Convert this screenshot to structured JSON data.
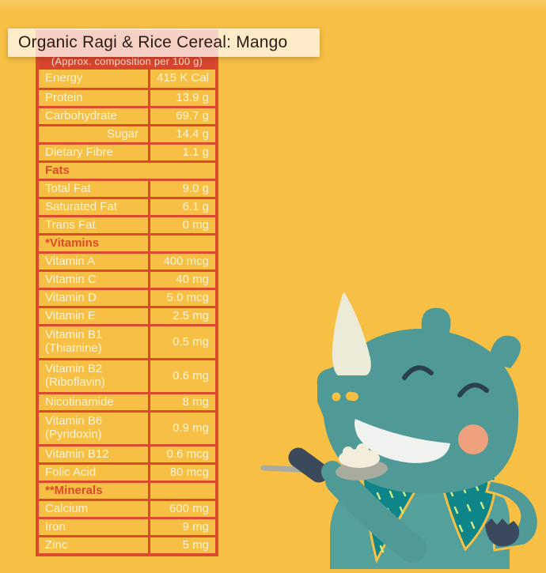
{
  "page": {
    "background_color": "#f7bf43"
  },
  "tooltip": {
    "text": "Organic Ragi & Rice Cereal: Mango"
  },
  "table": {
    "header": "(Approx. composition per 100 g)",
    "accent_color": "#dc4a2d",
    "text_color": "#fdf3d6",
    "rows": [
      {
        "label": "Energy",
        "value": "415 K Cal",
        "type": "data"
      },
      {
        "label": "Protein",
        "value": "13.9 g",
        "type": "data"
      },
      {
        "label": "Carbohydrate",
        "value": "69.7 g",
        "type": "data"
      },
      {
        "label": "Sugar",
        "value": "14.4 g",
        "type": "sub"
      },
      {
        "label": "Dietary Fibre",
        "value": "1.1 g",
        "type": "data"
      },
      {
        "label": "Fats",
        "value": "",
        "type": "section",
        "divider": false
      },
      {
        "label": "Total Fat",
        "value": "9.0 g",
        "type": "data"
      },
      {
        "label": "Saturated Fat",
        "value": "6.1 g",
        "type": "data"
      },
      {
        "label": "Trans Fat",
        "value": "0 mg",
        "type": "data"
      },
      {
        "label": "*Vitamins",
        "value": "",
        "type": "section",
        "divider": true
      },
      {
        "label": "Vitamin A",
        "value": "400 mcg",
        "type": "data"
      },
      {
        "label": "Vitamin C",
        "value": "40 mg",
        "type": "data"
      },
      {
        "label": "Vitamin D",
        "value": "5.0 mcg",
        "type": "data"
      },
      {
        "label": "Vitamin E",
        "value": "2.5 mg",
        "type": "data"
      },
      {
        "label": "Vitamin B1\n(Thiamine)",
        "value": "0.5 mg",
        "type": "data",
        "tall": true
      },
      {
        "label": "Vitamin B2\n(Riboflavin)",
        "value": "0.6 mg",
        "type": "data",
        "tall": true
      },
      {
        "label": "Nicotinamide",
        "value": "8 mg",
        "type": "data"
      },
      {
        "label": "Vitamin B6\n(Pyridoxin)",
        "value": "0.9 mg",
        "type": "data",
        "tall": true
      },
      {
        "label": "Vitamin B12",
        "value": "0.6 mcg",
        "type": "data"
      },
      {
        "label": "Folic Acid",
        "value": "80 mcg",
        "type": "data"
      },
      {
        "label": "**Minerals",
        "value": "",
        "type": "section",
        "divider": true
      },
      {
        "label": "Calcium",
        "value": "600 mg",
        "type": "data"
      },
      {
        "label": "Iron",
        "value": "9 mg",
        "type": "data"
      },
      {
        "label": "Zinc",
        "value": "5 mg",
        "type": "data"
      }
    ]
  },
  "illustration": {
    "name": "rhino-eating-cereal",
    "body_color": "#4f9a96",
    "vest_color": "#0e8589",
    "horn_color": "#ecebd8",
    "cheek_color": "#efa07c",
    "spoon_color": "#a9ab9f",
    "grip_color": "#3a4a5c"
  }
}
